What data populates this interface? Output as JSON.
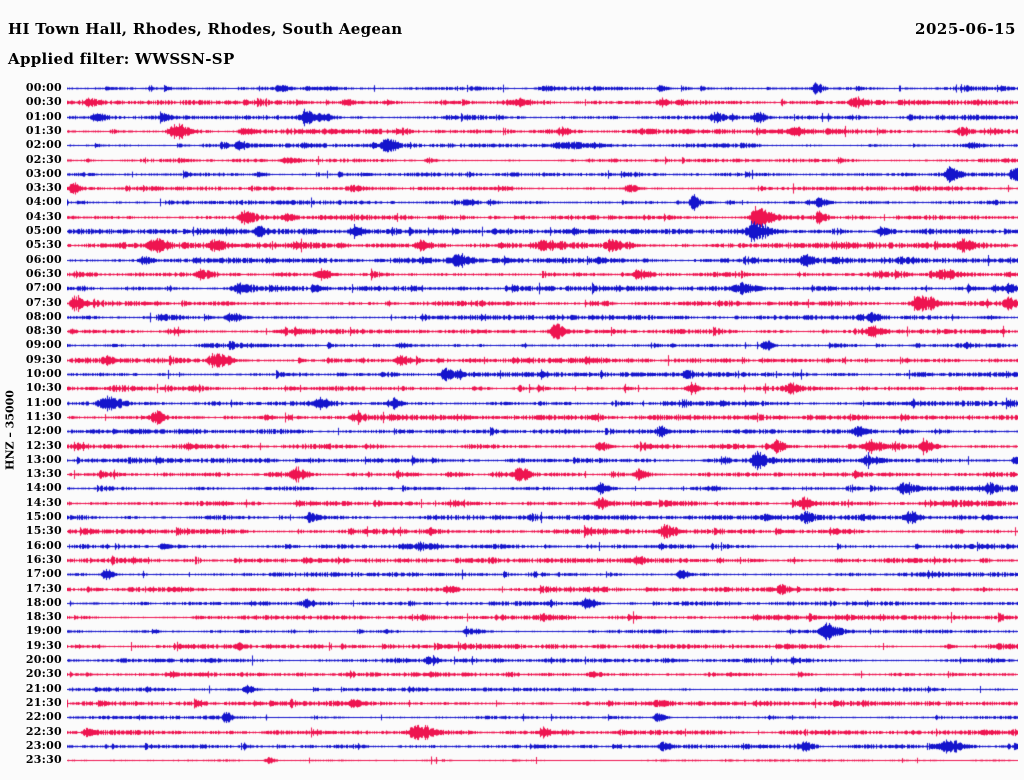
{
  "header": {
    "title": "HI Town Hall, Rhodes, Rhodes, South Aegean",
    "date": "2025-06-15",
    "filter_line": "Applied filter: WWSSN-SP"
  },
  "y_axis_label": "HNZ – 35000",
  "colors": {
    "blue": "#1414cc",
    "red": "#ee1450",
    "background": "#fbfbfb",
    "text": "#000000"
  },
  "chart_data": {
    "type": "line",
    "subtype": "helicorder-seismogram",
    "title": "HI Town Hall, Rhodes, Rhodes, South Aegean",
    "date": "2025-06-15",
    "filter": "WWSSN-SP",
    "channel": "HNZ",
    "scale": 35000,
    "minutes_per_row": 30,
    "grid": false,
    "legend": false,
    "rows": [
      {
        "time": "00:00",
        "color": "blue",
        "noise": 1.0,
        "bursts": [
          [
            0.223,
            2.5,
            7
          ],
          [
            0.502,
            2,
            8
          ],
          [
            0.623,
            2.5,
            5
          ],
          [
            0.786,
            4.5,
            5
          ]
        ]
      },
      {
        "time": "00:30",
        "color": "red",
        "noise": 1.2,
        "bursts": [
          [
            0.023,
            3,
            7
          ],
          [
            0.292,
            2.5,
            6
          ],
          [
            0.476,
            2.5,
            6
          ],
          [
            0.623,
            2.5,
            6
          ],
          [
            0.828,
            4.5,
            7
          ]
        ]
      },
      {
        "time": "01:00",
        "color": "blue",
        "noise": 1.1,
        "bursts": [
          [
            0.03,
            3.5,
            6
          ],
          [
            0.1,
            3,
            6
          ],
          [
            0.25,
            5,
            10
          ],
          [
            0.68,
            4,
            6
          ],
          [
            0.725,
            4.5,
            5
          ]
        ]
      },
      {
        "time": "01:30",
        "color": "red",
        "noise": 1.2,
        "bursts": [
          [
            0.113,
            7,
            9
          ],
          [
            0.185,
            3,
            6
          ],
          [
            0.52,
            2.5,
            6
          ],
          [
            0.76,
            3,
            6
          ],
          [
            0.94,
            3.5,
            6
          ]
        ]
      },
      {
        "time": "02:00",
        "color": "blue",
        "noise": 1.0,
        "bursts": [
          [
            0.18,
            2.5,
            6
          ],
          [
            0.335,
            5.5,
            7
          ],
          [
            0.52,
            2.5,
            22
          ],
          [
            0.95,
            2,
            6
          ]
        ]
      },
      {
        "time": "02:30",
        "color": "red",
        "noise": 0.9,
        "bursts": [
          [
            0.23,
            2.5,
            7
          ],
          [
            0.38,
            2,
            6
          ]
        ]
      },
      {
        "time": "03:00",
        "color": "blue",
        "noise": 1.0,
        "bursts": [
          [
            0.2,
            2,
            6
          ],
          [
            0.927,
            5.5,
            6
          ],
          [
            0.995,
            6,
            5
          ]
        ]
      },
      {
        "time": "03:30",
        "color": "red",
        "noise": 1.0,
        "bursts": [
          [
            0.005,
            5,
            5
          ],
          [
            0.3,
            2,
            6
          ],
          [
            0.59,
            3,
            6
          ]
        ]
      },
      {
        "time": "04:00",
        "color": "blue",
        "noise": 1.1,
        "bursts": [
          [
            0.42,
            2,
            6
          ],
          [
            0.657,
            8,
            3.5
          ],
          [
            0.79,
            3.5,
            6
          ]
        ]
      },
      {
        "time": "04:30",
        "color": "red",
        "noise": 1.2,
        "bursts": [
          [
            0.185,
            5,
            7
          ],
          [
            0.23,
            3,
            5
          ],
          [
            0.725,
            9,
            9
          ],
          [
            0.79,
            4,
            5
          ]
        ]
      },
      {
        "time": "05:00",
        "color": "blue",
        "noise": 1.3,
        "bursts": [
          [
            0.2,
            3.5,
            6
          ],
          [
            0.3,
            3,
            6
          ],
          [
            0.72,
            7,
            9
          ],
          [
            0.855,
            4,
            6
          ]
        ]
      },
      {
        "time": "05:30",
        "color": "red",
        "noise": 1.5,
        "bursts": [
          [
            0.09,
            5,
            8
          ],
          [
            0.155,
            4,
            6
          ],
          [
            0.37,
            4,
            6
          ],
          [
            0.5,
            4.5,
            7
          ],
          [
            0.57,
            4,
            6
          ],
          [
            0.94,
            4.5,
            7
          ]
        ]
      },
      {
        "time": "06:00",
        "color": "blue",
        "noise": 1.3,
        "bursts": [
          [
            0.08,
            2.5,
            6
          ],
          [
            0.41,
            5,
            9
          ],
          [
            0.775,
            4.5,
            6
          ]
        ]
      },
      {
        "time": "06:30",
        "color": "red",
        "noise": 1.4,
        "bursts": [
          [
            0.14,
            4,
            7
          ],
          [
            0.265,
            4,
            7
          ],
          [
            0.6,
            4,
            7
          ],
          [
            0.92,
            3.5,
            6
          ]
        ]
      },
      {
        "time": "07:00",
        "color": "blue",
        "noise": 1.2,
        "bursts": [
          [
            0.18,
            4,
            8
          ],
          [
            0.705,
            4,
            12
          ],
          [
            0.99,
            3,
            5
          ]
        ]
      },
      {
        "time": "07:30",
        "color": "red",
        "noise": 1.3,
        "bursts": [
          [
            0.007,
            6,
            5
          ],
          [
            0.895,
            6,
            9
          ],
          [
            0.99,
            4,
            5
          ]
        ]
      },
      {
        "time": "08:00",
        "color": "blue",
        "noise": 1.2,
        "bursts": [
          [
            0.17,
            4,
            7
          ],
          [
            0.845,
            3.5,
            6
          ]
        ]
      },
      {
        "time": "08:30",
        "color": "red",
        "noise": 1.3,
        "bursts": [
          [
            0.512,
            5,
            7
          ],
          [
            0.845,
            4,
            6
          ]
        ]
      },
      {
        "time": "09:00",
        "color": "blue",
        "noise": 1.2,
        "bursts": [
          [
            0.35,
            2,
            6
          ],
          [
            0.733,
            4.5,
            5
          ]
        ]
      },
      {
        "time": "09:30",
        "color": "red",
        "noise": 1.3,
        "bursts": [
          [
            0.04,
            3,
            6
          ],
          [
            0.155,
            6.5,
            10
          ],
          [
            0.35,
            4.5,
            7
          ]
        ]
      },
      {
        "time": "10:00",
        "color": "blue",
        "noise": 1.2,
        "bursts": [
          [
            0.397,
            5,
            7
          ],
          [
            0.65,
            2.5,
            6
          ]
        ]
      },
      {
        "time": "10:30",
        "color": "red",
        "noise": 1.3,
        "bursts": [
          [
            0.655,
            4,
            6
          ],
          [
            0.76,
            4,
            6
          ]
        ]
      },
      {
        "time": "11:00",
        "color": "blue",
        "noise": 1.3,
        "bursts": [
          [
            0.04,
            6,
            9
          ],
          [
            0.265,
            4,
            6
          ],
          [
            0.34,
            3.5,
            6
          ]
        ]
      },
      {
        "time": "11:30",
        "color": "red",
        "noise": 1.3,
        "bursts": [
          [
            0.092,
            6,
            5
          ],
          [
            0.3,
            2.5,
            6
          ]
        ]
      },
      {
        "time": "12:00",
        "color": "blue",
        "noise": 1.2,
        "bursts": [
          [
            0.623,
            4,
            5
          ],
          [
            0.83,
            3,
            6
          ]
        ]
      },
      {
        "time": "12:30",
        "color": "red",
        "noise": 1.4,
        "bursts": [
          [
            0.56,
            4,
            6
          ],
          [
            0.745,
            4.5,
            6
          ],
          [
            0.843,
            5.5,
            9
          ],
          [
            0.9,
            4,
            6
          ]
        ]
      },
      {
        "time": "13:00",
        "color": "blue",
        "noise": 1.2,
        "bursts": [
          [
            0.724,
            6.5,
            7
          ],
          [
            0.84,
            4,
            6
          ],
          [
            0.997,
            5,
            5
          ]
        ]
      },
      {
        "time": "13:30",
        "color": "red",
        "noise": 1.4,
        "bursts": [
          [
            0.24,
            4,
            6
          ],
          [
            0.475,
            4.5,
            7
          ],
          [
            0.6,
            4,
            6
          ]
        ]
      },
      {
        "time": "14:00",
        "color": "blue",
        "noise": 1.2,
        "bursts": [
          [
            0.56,
            4,
            6
          ],
          [
            0.88,
            5.5,
            9
          ],
          [
            0.97,
            3.5,
            5
          ]
        ]
      },
      {
        "time": "14:30",
        "color": "red",
        "noise": 1.4,
        "bursts": [
          [
            0.56,
            4.5,
            7
          ],
          [
            0.775,
            4,
            6
          ]
        ]
      },
      {
        "time": "15:00",
        "color": "blue",
        "noise": 1.2,
        "bursts": [
          [
            0.255,
            4.5,
            6
          ],
          [
            0.775,
            4,
            6
          ],
          [
            0.885,
            4.5,
            6
          ]
        ]
      },
      {
        "time": "15:30",
        "color": "red",
        "noise": 1.3,
        "bursts": [
          [
            0.628,
            5,
            7
          ]
        ]
      },
      {
        "time": "16:00",
        "color": "blue",
        "noise": 1.2,
        "bursts": [
          [
            0.1,
            2.5,
            6
          ],
          [
            0.37,
            3,
            6
          ]
        ]
      },
      {
        "time": "16:30",
        "color": "red",
        "noise": 1.2,
        "bursts": [
          [
            0.25,
            2.5,
            6
          ],
          [
            0.6,
            2.5,
            6
          ]
        ]
      },
      {
        "time": "17:00",
        "color": "blue",
        "noise": 1.1,
        "bursts": [
          [
            0.04,
            4.5,
            5
          ],
          [
            0.645,
            3.5,
            6
          ]
        ]
      },
      {
        "time": "17:30",
        "color": "red",
        "noise": 1.3,
        "bursts": [
          [
            0.4,
            2.5,
            6
          ],
          [
            0.75,
            3,
            6
          ]
        ]
      },
      {
        "time": "18:00",
        "color": "blue",
        "noise": 1.1,
        "bursts": [
          [
            0.25,
            2.5,
            6
          ],
          [
            0.545,
            4.5,
            7
          ]
        ]
      },
      {
        "time": "18:30",
        "color": "red",
        "noise": 1.1,
        "bursts": [
          [
            0.5,
            2,
            6
          ]
        ]
      },
      {
        "time": "19:00",
        "color": "blue",
        "noise": 1.0,
        "bursts": [
          [
            0.42,
            2.5,
            6
          ],
          [
            0.797,
            6,
            9
          ]
        ]
      },
      {
        "time": "19:30",
        "color": "red",
        "noise": 1.1,
        "bursts": [
          [
            0.18,
            3,
            6
          ]
        ]
      },
      {
        "time": "20:00",
        "color": "blue",
        "noise": 1.0,
        "bursts": [
          [
            0.38,
            3.5,
            6
          ]
        ]
      },
      {
        "time": "20:30",
        "color": "red",
        "noise": 1.0,
        "bursts": [
          [
            0.55,
            2,
            6
          ]
        ]
      },
      {
        "time": "21:00",
        "color": "blue",
        "noise": 0.9,
        "bursts": [
          [
            0.187,
            4,
            4
          ]
        ]
      },
      {
        "time": "21:30",
        "color": "red",
        "noise": 1.1,
        "bursts": [
          [
            0.3,
            3,
            6
          ],
          [
            0.62,
            2.5,
            6
          ]
        ]
      },
      {
        "time": "22:00",
        "color": "blue",
        "noise": 0.9,
        "bursts": [
          [
            0.166,
            4.5,
            4
          ],
          [
            0.62,
            4,
            5
          ]
        ]
      },
      {
        "time": "22:30",
        "color": "red",
        "noise": 1.2,
        "bursts": [
          [
            0.02,
            3,
            5
          ],
          [
            0.366,
            6.5,
            9
          ],
          [
            0.5,
            4,
            6
          ]
        ]
      },
      {
        "time": "23:00",
        "color": "blue",
        "noise": 1.0,
        "bursts": [
          [
            0.625,
            3.5,
            6
          ],
          [
            0.775,
            3.5,
            6
          ],
          [
            0.925,
            5.5,
            9
          ]
        ]
      },
      {
        "time": "23:30",
        "color": "red",
        "noise": 0.55,
        "bursts": [
          [
            0.21,
            3,
            5
          ]
        ]
      }
    ]
  }
}
